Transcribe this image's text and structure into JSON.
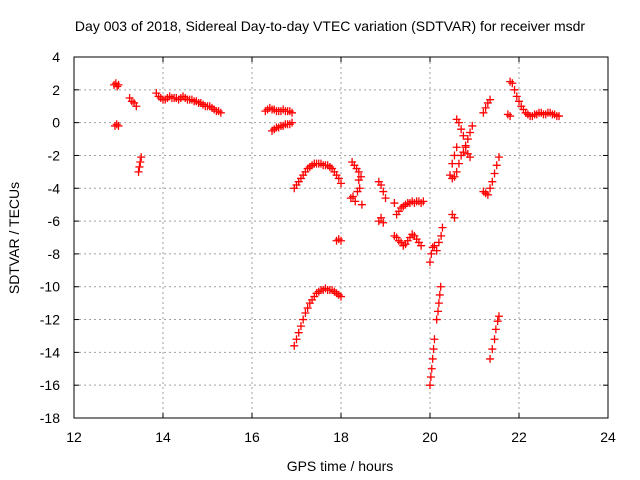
{
  "chart_data": {
    "type": "scatter",
    "title": "Day 003 of 2018, Sidereal Day-to-day VTEC variation (SDTVAR) for receiver msdr",
    "xlabel": "GPS time / hours",
    "ylabel": "SDTVAR / TECUs",
    "xlim": [
      12,
      24
    ],
    "ylim": [
      -18,
      4
    ],
    "xticks": [
      12,
      14,
      16,
      18,
      20,
      22,
      24
    ],
    "yticks": [
      4,
      2,
      0,
      -2,
      -4,
      -6,
      -8,
      -10,
      -12,
      -14,
      -16,
      -18
    ],
    "grid": true,
    "marker": "+",
    "color": "#ff0000",
    "points": [
      [
        12.9,
        2.3
      ],
      [
        12.94,
        2.4
      ],
      [
        12.97,
        2.2
      ],
      [
        13.0,
        2.3
      ],
      [
        12.92,
        -0.2
      ],
      [
        12.96,
        -0.1
      ],
      [
        13.0,
        -0.2
      ],
      [
        13.25,
        1.5
      ],
      [
        13.3,
        1.3
      ],
      [
        13.35,
        1.2
      ],
      [
        13.4,
        1.0
      ],
      [
        13.45,
        -3.0
      ],
      [
        13.47,
        -2.7
      ],
      [
        13.49,
        -2.4
      ],
      [
        13.51,
        -2.1
      ],
      [
        13.85,
        1.8
      ],
      [
        13.9,
        1.6
      ],
      [
        13.95,
        1.5
      ],
      [
        14.0,
        1.4
      ],
      [
        14.05,
        1.4
      ],
      [
        14.1,
        1.5
      ],
      [
        14.15,
        1.6
      ],
      [
        14.2,
        1.5
      ],
      [
        14.25,
        1.5
      ],
      [
        14.3,
        1.5
      ],
      [
        14.35,
        1.4
      ],
      [
        14.4,
        1.5
      ],
      [
        14.45,
        1.6
      ],
      [
        14.5,
        1.5
      ],
      [
        14.55,
        1.4
      ],
      [
        14.6,
        1.4
      ],
      [
        14.65,
        1.4
      ],
      [
        14.7,
        1.3
      ],
      [
        14.75,
        1.3
      ],
      [
        14.8,
        1.2
      ],
      [
        14.85,
        1.2
      ],
      [
        14.9,
        1.1
      ],
      [
        14.95,
        1.0
      ],
      [
        15.0,
        1.0
      ],
      [
        15.05,
        1.0
      ],
      [
        15.1,
        0.9
      ],
      [
        15.15,
        0.8
      ],
      [
        15.2,
        0.7
      ],
      [
        15.25,
        0.7
      ],
      [
        15.3,
        0.6
      ],
      [
        16.3,
        0.7
      ],
      [
        16.35,
        0.8
      ],
      [
        16.4,
        0.9
      ],
      [
        16.45,
        0.8
      ],
      [
        16.5,
        0.8
      ],
      [
        16.55,
        0.7
      ],
      [
        16.6,
        0.7
      ],
      [
        16.65,
        0.7
      ],
      [
        16.7,
        0.8
      ],
      [
        16.75,
        0.7
      ],
      [
        16.8,
        0.7
      ],
      [
        16.85,
        0.7
      ],
      [
        16.9,
        0.6
      ],
      [
        16.45,
        -0.5
      ],
      [
        16.5,
        -0.4
      ],
      [
        16.55,
        -0.3
      ],
      [
        16.6,
        -0.3
      ],
      [
        16.65,
        -0.2
      ],
      [
        16.7,
        -0.2
      ],
      [
        16.75,
        -0.1
      ],
      [
        16.8,
        -0.1
      ],
      [
        16.85,
        -0.1
      ],
      [
        16.9,
        0.0
      ],
      [
        16.95,
        -4.0
      ],
      [
        17.0,
        -3.8
      ],
      [
        17.05,
        -3.6
      ],
      [
        17.1,
        -3.4
      ],
      [
        17.15,
        -3.2
      ],
      [
        17.2,
        -3.0
      ],
      [
        17.25,
        -2.8
      ],
      [
        17.3,
        -2.7
      ],
      [
        17.35,
        -2.6
      ],
      [
        17.4,
        -2.5
      ],
      [
        17.45,
        -2.5
      ],
      [
        17.5,
        -2.5
      ],
      [
        17.55,
        -2.5
      ],
      [
        17.6,
        -2.6
      ],
      [
        17.65,
        -2.6
      ],
      [
        17.7,
        -2.6
      ],
      [
        17.75,
        -2.7
      ],
      [
        17.8,
        -2.8
      ],
      [
        17.85,
        -3.0
      ],
      [
        17.9,
        -3.2
      ],
      [
        17.95,
        -3.4
      ],
      [
        18.0,
        -3.7
      ],
      [
        16.95,
        -13.6
      ],
      [
        17.0,
        -13.2
      ],
      [
        17.05,
        -12.8
      ],
      [
        17.1,
        -12.4
      ],
      [
        17.15,
        -12.0
      ],
      [
        17.2,
        -11.6
      ],
      [
        17.25,
        -11.3
      ],
      [
        17.3,
        -11.0
      ],
      [
        17.35,
        -10.8
      ],
      [
        17.4,
        -10.6
      ],
      [
        17.45,
        -10.4
      ],
      [
        17.5,
        -10.3
      ],
      [
        17.55,
        -10.2
      ],
      [
        17.6,
        -10.2
      ],
      [
        17.65,
        -10.1
      ],
      [
        17.7,
        -10.2
      ],
      [
        17.75,
        -10.2
      ],
      [
        17.8,
        -10.2
      ],
      [
        17.85,
        -10.3
      ],
      [
        17.9,
        -10.4
      ],
      [
        17.95,
        -10.5
      ],
      [
        18.0,
        -10.6
      ],
      [
        17.9,
        -7.2
      ],
      [
        17.95,
        -7.1
      ],
      [
        18.0,
        -7.2
      ],
      [
        18.25,
        -2.4
      ],
      [
        18.3,
        -2.6
      ],
      [
        18.35,
        -2.8
      ],
      [
        18.4,
        -3.0
      ],
      [
        18.45,
        -3.3
      ],
      [
        18.22,
        -4.6
      ],
      [
        18.27,
        -4.5
      ],
      [
        18.32,
        -4.8
      ],
      [
        18.37,
        -4.2
      ],
      [
        18.42,
        -4.0
      ],
      [
        18.47,
        -5.0
      ],
      [
        18.4,
        -3.5
      ],
      [
        18.85,
        -3.6
      ],
      [
        18.9,
        -3.8
      ],
      [
        18.95,
        -4.2
      ],
      [
        19.0,
        -4.6
      ],
      [
        18.85,
        -6.0
      ],
      [
        18.9,
        -5.8
      ],
      [
        18.95,
        -6.1
      ],
      [
        19.2,
        -4.9
      ],
      [
        19.25,
        -5.6
      ],
      [
        19.3,
        -5.4
      ],
      [
        19.35,
        -5.2
      ],
      [
        19.4,
        -5.1
      ],
      [
        19.45,
        -5.0
      ],
      [
        19.5,
        -4.9
      ],
      [
        19.55,
        -4.9
      ],
      [
        19.6,
        -4.8
      ],
      [
        19.65,
        -4.9
      ],
      [
        19.7,
        -4.8
      ],
      [
        19.75,
        -4.8
      ],
      [
        19.8,
        -4.9
      ],
      [
        19.85,
        -4.8
      ],
      [
        19.2,
        -6.9
      ],
      [
        19.25,
        -7.0
      ],
      [
        19.3,
        -7.2
      ],
      [
        19.35,
        -7.3
      ],
      [
        19.4,
        -7.5
      ],
      [
        19.45,
        -7.4
      ],
      [
        19.5,
        -7.2
      ],
      [
        19.55,
        -7.0
      ],
      [
        19.6,
        -6.8
      ],
      [
        19.65,
        -6.9
      ],
      [
        19.7,
        -7.1
      ],
      [
        19.75,
        -7.3
      ],
      [
        19.8,
        -7.5
      ],
      [
        20.0,
        -8.5
      ],
      [
        20.03,
        -8.0
      ],
      [
        20.06,
        -7.6
      ],
      [
        20.1,
        -7.5
      ],
      [
        20.15,
        -7.8
      ],
      [
        20.2,
        -7.3
      ],
      [
        20.25,
        -6.9
      ],
      [
        20.28,
        -6.4
      ],
      [
        20.0,
        -16.0
      ],
      [
        20.02,
        -15.5
      ],
      [
        20.04,
        -15.0
      ],
      [
        20.06,
        -14.4
      ],
      [
        20.08,
        -13.8
      ],
      [
        20.1,
        -13.2
      ],
      [
        20.15,
        -12.0
      ],
      [
        20.18,
        -11.5
      ],
      [
        20.2,
        -11.0
      ],
      [
        20.22,
        -10.5
      ],
      [
        20.24,
        -10.0
      ],
      [
        20.5,
        -5.6
      ],
      [
        20.55,
        -5.8
      ],
      [
        20.45,
        -3.2
      ],
      [
        20.5,
        -3.4
      ],
      [
        20.55,
        -3.3
      ],
      [
        20.6,
        -3.0
      ],
      [
        20.65,
        -2.5
      ],
      [
        20.7,
        -2.0
      ],
      [
        20.75,
        -1.8
      ],
      [
        20.8,
        -1.5
      ],
      [
        20.85,
        -1.0
      ],
      [
        20.9,
        -0.6
      ],
      [
        20.95,
        -0.2
      ],
      [
        20.5,
        -2.5
      ],
      [
        20.55,
        -2.0
      ],
      [
        20.6,
        -1.5
      ],
      [
        20.6,
        0.2
      ],
      [
        20.65,
        0.0
      ],
      [
        20.7,
        -0.4
      ],
      [
        20.75,
        -0.8
      ],
      [
        20.8,
        -1.4
      ],
      [
        20.85,
        -1.9
      ],
      [
        20.9,
        -2.1
      ],
      [
        21.2,
        0.6
      ],
      [
        21.25,
        0.9
      ],
      [
        21.3,
        1.2
      ],
      [
        21.35,
        1.4
      ],
      [
        21.2,
        -4.2
      ],
      [
        21.25,
        -4.3
      ],
      [
        21.3,
        -4.4
      ],
      [
        21.35,
        -4.0
      ],
      [
        21.4,
        -3.6
      ],
      [
        21.45,
        -3.1
      ],
      [
        21.5,
        -2.6
      ],
      [
        21.55,
        -2.1
      ],
      [
        21.35,
        -14.4
      ],
      [
        21.4,
        -13.8
      ],
      [
        21.45,
        -13.2
      ],
      [
        21.48,
        -12.6
      ],
      [
        21.52,
        -12.1
      ],
      [
        21.55,
        -11.8
      ],
      [
        21.75,
        0.5
      ],
      [
        21.8,
        0.4
      ],
      [
        21.8,
        2.5
      ],
      [
        21.85,
        2.4
      ],
      [
        21.9,
        2.0
      ],
      [
        21.95,
        1.6
      ],
      [
        22.0,
        1.3
      ],
      [
        22.05,
        1.0
      ],
      [
        22.1,
        0.8
      ],
      [
        22.15,
        0.6
      ],
      [
        22.2,
        0.5
      ],
      [
        22.25,
        0.4
      ],
      [
        22.3,
        0.4
      ],
      [
        22.35,
        0.5
      ],
      [
        22.4,
        0.5
      ],
      [
        22.45,
        0.6
      ],
      [
        22.5,
        0.6
      ],
      [
        22.55,
        0.5
      ],
      [
        22.6,
        0.5
      ],
      [
        22.65,
        0.6
      ],
      [
        22.7,
        0.6
      ],
      [
        22.75,
        0.5
      ],
      [
        22.8,
        0.5
      ],
      [
        22.85,
        0.4
      ],
      [
        22.9,
        0.4
      ]
    ]
  }
}
